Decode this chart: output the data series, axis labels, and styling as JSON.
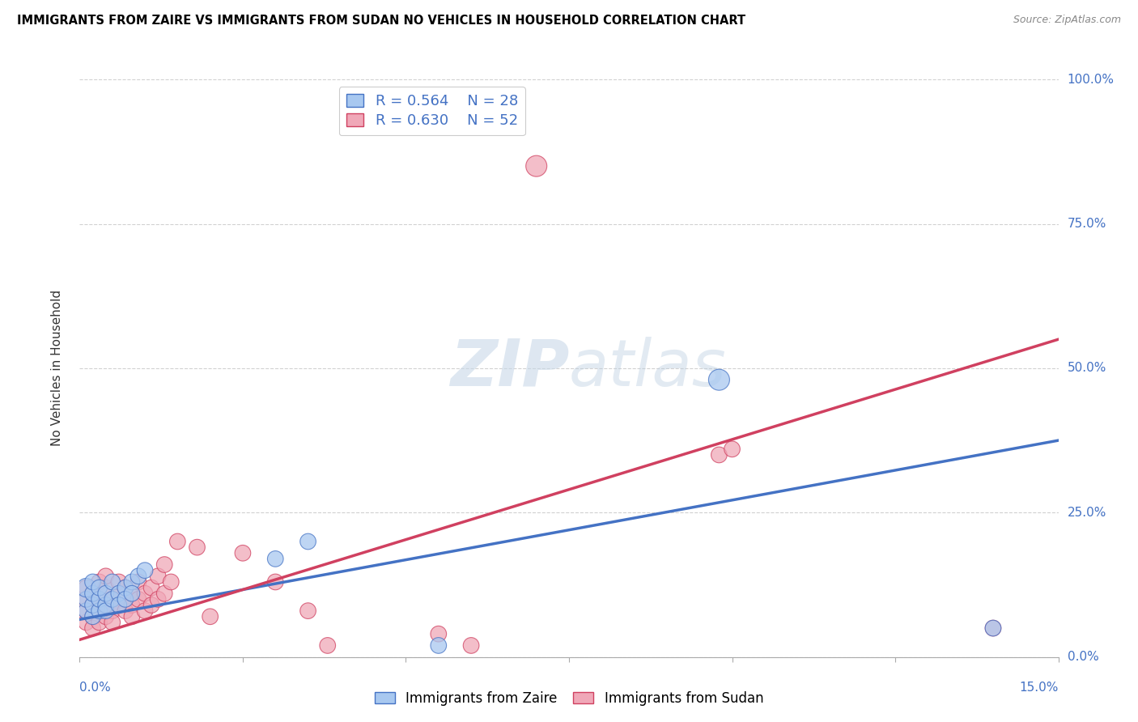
{
  "title": "IMMIGRANTS FROM ZAIRE VS IMMIGRANTS FROM SUDAN NO VEHICLES IN HOUSEHOLD CORRELATION CHART",
  "source": "Source: ZipAtlas.com",
  "xlim": [
    0.0,
    0.15
  ],
  "ylim": [
    0.0,
    1.0
  ],
  "ylabel": "No Vehicles in Household",
  "zaire_color": "#a8c8f0",
  "sudan_color": "#f0a8b8",
  "zaire_line_color": "#4472c4",
  "sudan_line_color": "#d04060",
  "zaire_R": 0.564,
  "zaire_N": 28,
  "sudan_R": 0.63,
  "sudan_N": 52,
  "zaire_points": [
    [
      0.001,
      0.08
    ],
    [
      0.001,
      0.1
    ],
    [
      0.001,
      0.12
    ],
    [
      0.002,
      0.07
    ],
    [
      0.002,
      0.09
    ],
    [
      0.002,
      0.11
    ],
    [
      0.002,
      0.13
    ],
    [
      0.003,
      0.08
    ],
    [
      0.003,
      0.1
    ],
    [
      0.003,
      0.12
    ],
    [
      0.004,
      0.09
    ],
    [
      0.004,
      0.11
    ],
    [
      0.004,
      0.08
    ],
    [
      0.005,
      0.1
    ],
    [
      0.005,
      0.13
    ],
    [
      0.006,
      0.11
    ],
    [
      0.006,
      0.09
    ],
    [
      0.007,
      0.12
    ],
    [
      0.007,
      0.1
    ],
    [
      0.008,
      0.13
    ],
    [
      0.008,
      0.11
    ],
    [
      0.009,
      0.14
    ],
    [
      0.01,
      0.15
    ],
    [
      0.03,
      0.17
    ],
    [
      0.035,
      0.2
    ],
    [
      0.055,
      0.02
    ],
    [
      0.098,
      0.48
    ],
    [
      0.14,
      0.05
    ]
  ],
  "sudan_points": [
    [
      0.001,
      0.06
    ],
    [
      0.001,
      0.08
    ],
    [
      0.001,
      0.1
    ],
    [
      0.001,
      0.12
    ],
    [
      0.002,
      0.07
    ],
    [
      0.002,
      0.09
    ],
    [
      0.002,
      0.11
    ],
    [
      0.002,
      0.05
    ],
    [
      0.003,
      0.08
    ],
    [
      0.003,
      0.1
    ],
    [
      0.003,
      0.13
    ],
    [
      0.003,
      0.06
    ],
    [
      0.004,
      0.07
    ],
    [
      0.004,
      0.09
    ],
    [
      0.004,
      0.12
    ],
    [
      0.004,
      0.14
    ],
    [
      0.005,
      0.08
    ],
    [
      0.005,
      0.1
    ],
    [
      0.005,
      0.06
    ],
    [
      0.006,
      0.09
    ],
    [
      0.006,
      0.11
    ],
    [
      0.006,
      0.13
    ],
    [
      0.007,
      0.08
    ],
    [
      0.007,
      0.1
    ],
    [
      0.007,
      0.12
    ],
    [
      0.008,
      0.09
    ],
    [
      0.008,
      0.07
    ],
    [
      0.008,
      0.11
    ],
    [
      0.009,
      0.1
    ],
    [
      0.009,
      0.13
    ],
    [
      0.01,
      0.11
    ],
    [
      0.01,
      0.08
    ],
    [
      0.011,
      0.12
    ],
    [
      0.011,
      0.09
    ],
    [
      0.012,
      0.14
    ],
    [
      0.012,
      0.1
    ],
    [
      0.013,
      0.11
    ],
    [
      0.013,
      0.16
    ],
    [
      0.014,
      0.13
    ],
    [
      0.015,
      0.2
    ],
    [
      0.018,
      0.19
    ],
    [
      0.02,
      0.07
    ],
    [
      0.025,
      0.18
    ],
    [
      0.03,
      0.13
    ],
    [
      0.035,
      0.08
    ],
    [
      0.038,
      0.02
    ],
    [
      0.055,
      0.04
    ],
    [
      0.06,
      0.02
    ],
    [
      0.07,
      0.85
    ],
    [
      0.098,
      0.35
    ],
    [
      0.1,
      0.36
    ],
    [
      0.14,
      0.05
    ]
  ],
  "zaire_sizes": [
    200,
    200,
    280,
    200,
    200,
    200,
    200,
    200,
    200,
    200,
    200,
    200,
    200,
    200,
    200,
    200,
    200,
    200,
    200,
    200,
    200,
    200,
    200,
    200,
    200,
    200,
    350,
    200
  ],
  "sudan_sizes": [
    200,
    200,
    200,
    200,
    200,
    200,
    200,
    200,
    200,
    200,
    200,
    200,
    200,
    200,
    200,
    200,
    200,
    200,
    200,
    200,
    200,
    200,
    200,
    200,
    200,
    200,
    200,
    200,
    200,
    200,
    200,
    200,
    200,
    200,
    200,
    200,
    200,
    200,
    200,
    200,
    200,
    200,
    200,
    200,
    200,
    200,
    200,
    200,
    350,
    200,
    200,
    200
  ]
}
